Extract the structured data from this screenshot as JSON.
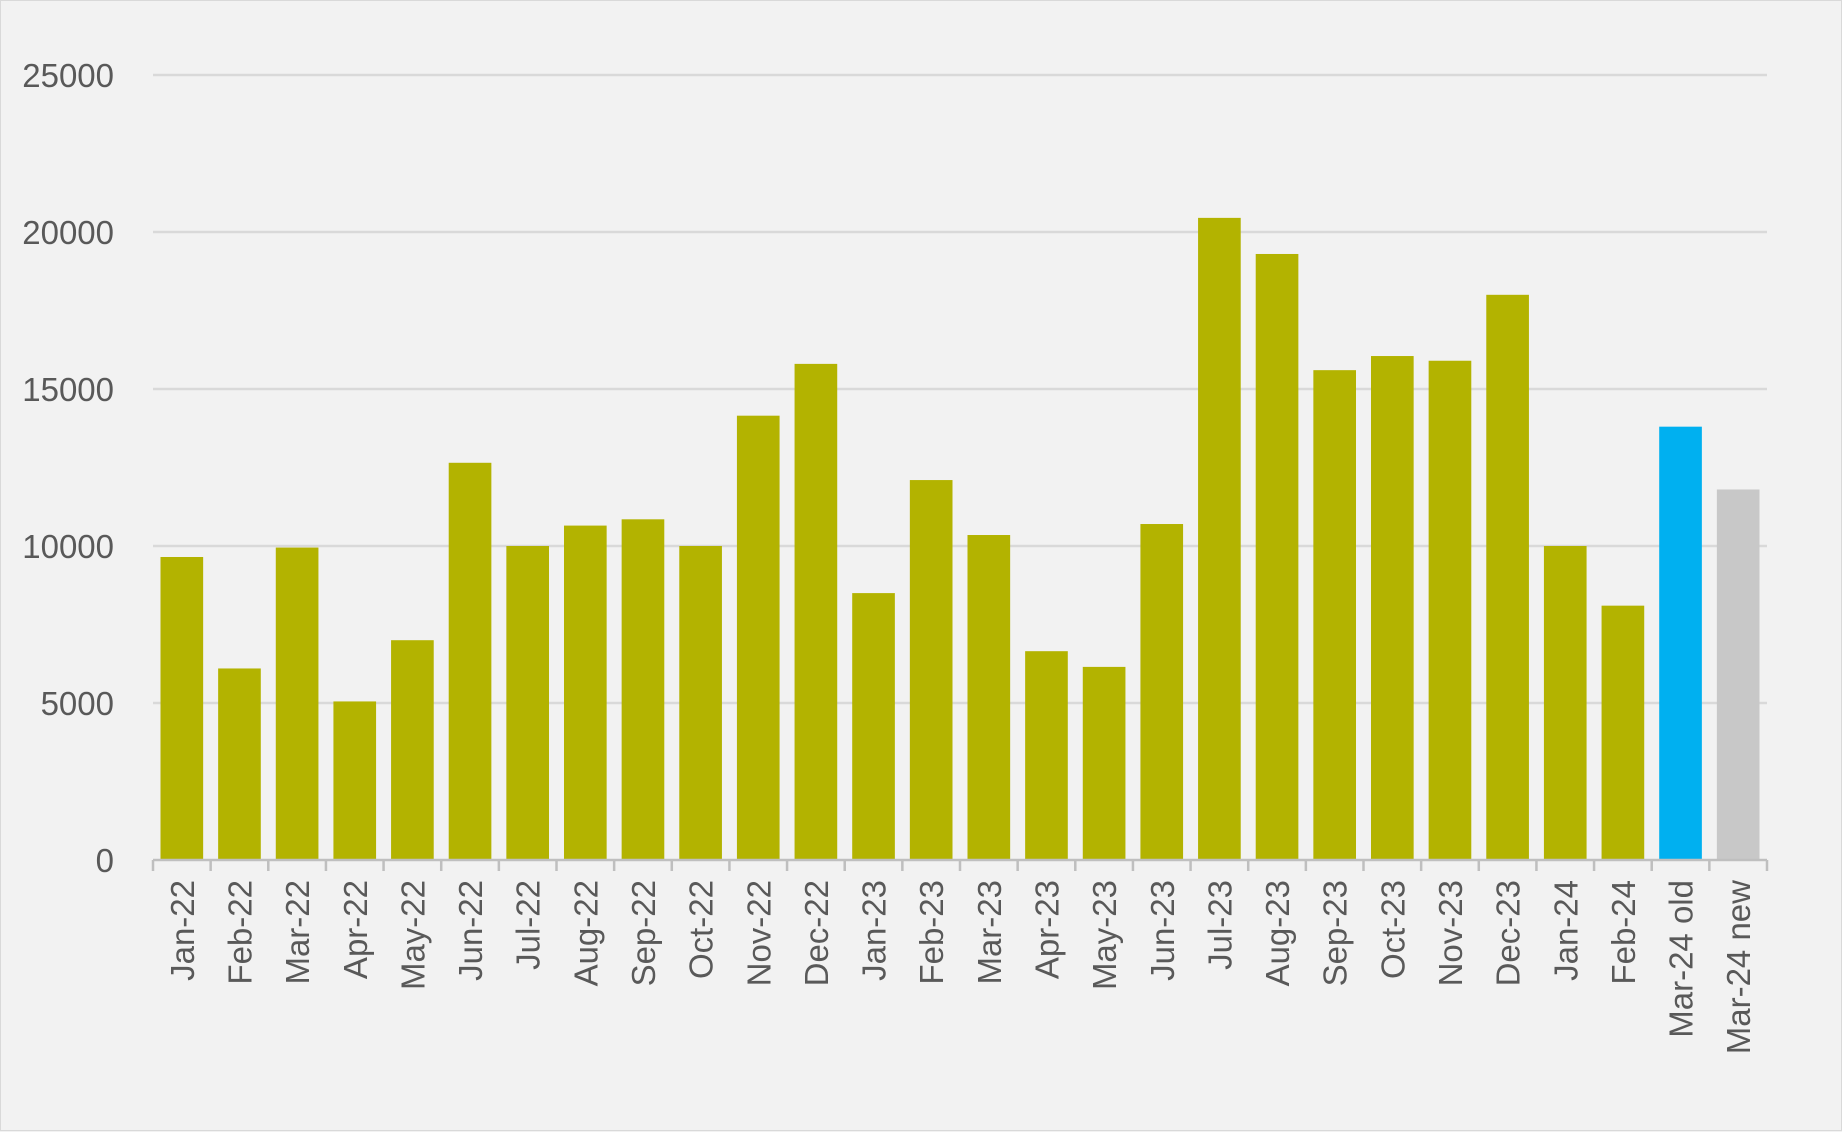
{
  "chart_data": {
    "type": "bar",
    "title": "",
    "xlabel": "",
    "ylabel": "",
    "ylim": [
      0,
      25000
    ],
    "y_ticks": [
      0,
      5000,
      10000,
      15000,
      20000,
      25000
    ],
    "y_tick_labels": [
      "0",
      "5000",
      "10000",
      "15000",
      "20000",
      "25000"
    ],
    "grid": true,
    "legend": "none",
    "categories": [
      "Jan-22",
      "Feb-22",
      "Mar-22",
      "Apr-22",
      "May-22",
      "Jun-22",
      "Jul-22",
      "Aug-22",
      "Sep-22",
      "Oct-22",
      "Nov-22",
      "Dec-22",
      "Jan-23",
      "Feb-23",
      "Mar-23",
      "Apr-23",
      "May-23",
      "Jun-23",
      "Jul-23",
      "Aug-23",
      "Sep-23",
      "Oct-23",
      "Nov-23",
      "Dec-23",
      "Jan-24",
      "Feb-24",
      "Mar-24 old",
      "Mar-24 new"
    ],
    "values": [
      9650,
      6100,
      9950,
      5050,
      7000,
      12650,
      10000,
      10650,
      10850,
      10000,
      14150,
      15800,
      8500,
      12100,
      10350,
      6650,
      6150,
      10700,
      20450,
      19300,
      15600,
      16050,
      15900,
      18000,
      10000,
      8100,
      13800,
      11800
    ],
    "colors": {
      "default_bar": "#b3b300",
      "highlight_bars": {
        "Mar-24 old": "#00b0f0",
        "Mar-24 new": "#c8c8c8"
      }
    }
  }
}
